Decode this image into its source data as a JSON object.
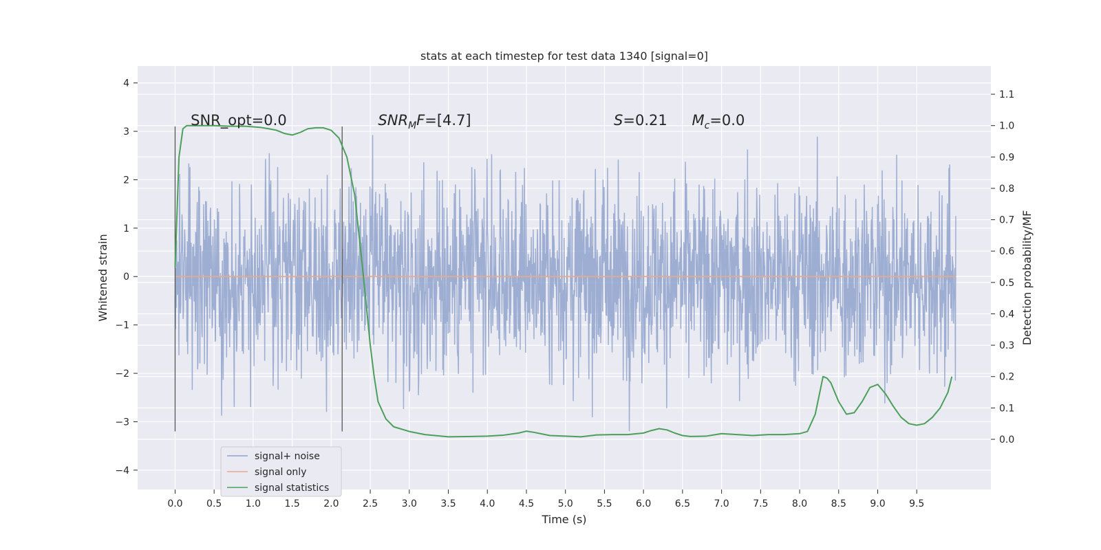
{
  "chart_data": {
    "type": "line",
    "title": "stats at each timestep for test data 1340 [signal=0]",
    "xlabel": "Time (s)",
    "ylabel": "Whitened strain",
    "y2label": "Detection probability/MF",
    "xlim": [
      -0.48,
      10.45
    ],
    "ylim": [
      -4.4,
      4.35
    ],
    "y2lim": [
      -0.16,
      1.19
    ],
    "xticks": [
      0.0,
      0.5,
      1.0,
      1.5,
      2.0,
      2.5,
      3.0,
      3.5,
      4.0,
      4.5,
      5.0,
      5.5,
      6.0,
      6.5,
      7.0,
      7.5,
      8.0,
      8.5,
      9.0,
      9.5
    ],
    "xtick_labels": [
      "0.0",
      "0.5",
      "1.0",
      "1.5",
      "2.0",
      "2.5",
      "3.0",
      "3.5",
      "4.0",
      "4.5",
      "5.0",
      "5.5",
      "6.0",
      "6.5",
      "7.0",
      "7.5",
      "8.0",
      "8.5",
      "9.0",
      "9.5"
    ],
    "yticks": [
      4,
      3,
      2,
      1,
      0,
      -1,
      -2,
      -3,
      -4
    ],
    "ytick_labels": [
      "4",
      "3",
      "2",
      "1",
      "0",
      "−1",
      "−2",
      "−3",
      "−4"
    ],
    "y2ticks": [
      1.1,
      1.0,
      0.9,
      0.8,
      0.7,
      0.6,
      0.5,
      0.4,
      0.3,
      0.2,
      0.1,
      0.0
    ],
    "y2tick_labels": [
      "1.1",
      "1.0",
      "0.9",
      "0.8",
      "0.7",
      "0.6",
      "0.5",
      "0.4",
      "0.3",
      "0.2",
      "0.1",
      "0.0"
    ],
    "grid": true,
    "legend": {
      "placement": "lower-left",
      "entries": [
        "signal+ noise",
        "signal only",
        "signal statistics"
      ]
    },
    "annotations": [
      {
        "text": "SNR_opt=0.0",
        "x": 0.2,
        "y": 3.1
      },
      {
        "base": "SNR",
        "sub": "M",
        "tail": "F=[4.7]",
        "x": 2.6,
        "y": 3.1
      },
      {
        "base": "S",
        "tail": "=0.21",
        "x": 5.62,
        "y": 3.1
      },
      {
        "base": "M",
        "sub": "c",
        "tail": "=0.0",
        "x": 6.62,
        "y": 3.1
      }
    ],
    "vlines": [
      {
        "x": 0.0,
        "y": [
          -3.2,
          3.1
        ]
      },
      {
        "x": 2.14,
        "y": [
          -3.2,
          3.1
        ]
      }
    ],
    "series": [
      {
        "name": "signal+ noise",
        "color": "#8fa3cc",
        "duration": 10.0,
        "n_samples": 2048,
        "envelope_std": 1.0,
        "description_range": [
          -4.05,
          3.95
        ]
      },
      {
        "name": "signal only",
        "color": "#e8a98c",
        "x": [
          0.0,
          10.0
        ],
        "y": [
          0.0,
          0.0
        ]
      },
      {
        "name": "signal statistics",
        "color": "#4c9f5a",
        "axis": "right",
        "x": [
          0.0,
          0.05,
          0.1,
          0.15,
          0.2,
          0.3,
          0.5,
          0.7,
          0.9,
          1.0,
          1.1,
          1.2,
          1.3,
          1.4,
          1.5,
          1.6,
          1.7,
          1.8,
          1.9,
          2.0,
          2.1,
          2.2,
          2.3,
          2.4,
          2.5,
          2.55,
          2.6,
          2.7,
          2.8,
          3.0,
          3.2,
          3.5,
          3.8,
          4.0,
          4.2,
          4.4,
          4.5,
          4.6,
          4.8,
          5.0,
          5.2,
          5.4,
          5.6,
          5.8,
          6.0,
          6.1,
          6.2,
          6.3,
          6.4,
          6.5,
          6.6,
          6.8,
          7.0,
          7.2,
          7.4,
          7.6,
          7.8,
          8.0,
          8.1,
          8.2,
          8.3,
          8.35,
          8.4,
          8.5,
          8.6,
          8.7,
          8.8,
          8.9,
          9.0,
          9.1,
          9.2,
          9.3,
          9.4,
          9.5,
          9.6,
          9.7,
          9.8,
          9.9,
          9.95
        ],
        "y": [
          0.55,
          0.9,
          0.99,
          1.0,
          1.0,
          1.0,
          1.0,
          0.998,
          0.998,
          0.996,
          0.994,
          0.99,
          0.985,
          0.975,
          0.97,
          0.978,
          0.99,
          0.993,
          0.993,
          0.985,
          0.96,
          0.9,
          0.78,
          0.55,
          0.3,
          0.2,
          0.12,
          0.065,
          0.04,
          0.025,
          0.015,
          0.008,
          0.009,
          0.01,
          0.013,
          0.02,
          0.026,
          0.022,
          0.012,
          0.01,
          0.008,
          0.014,
          0.015,
          0.015,
          0.02,
          0.028,
          0.034,
          0.03,
          0.02,
          0.012,
          0.009,
          0.01,
          0.018,
          0.015,
          0.012,
          0.015,
          0.015,
          0.018,
          0.025,
          0.08,
          0.2,
          0.195,
          0.18,
          0.12,
          0.08,
          0.085,
          0.12,
          0.165,
          0.175,
          0.145,
          0.105,
          0.07,
          0.05,
          0.045,
          0.05,
          0.07,
          0.1,
          0.15,
          0.2
        ]
      }
    ]
  }
}
